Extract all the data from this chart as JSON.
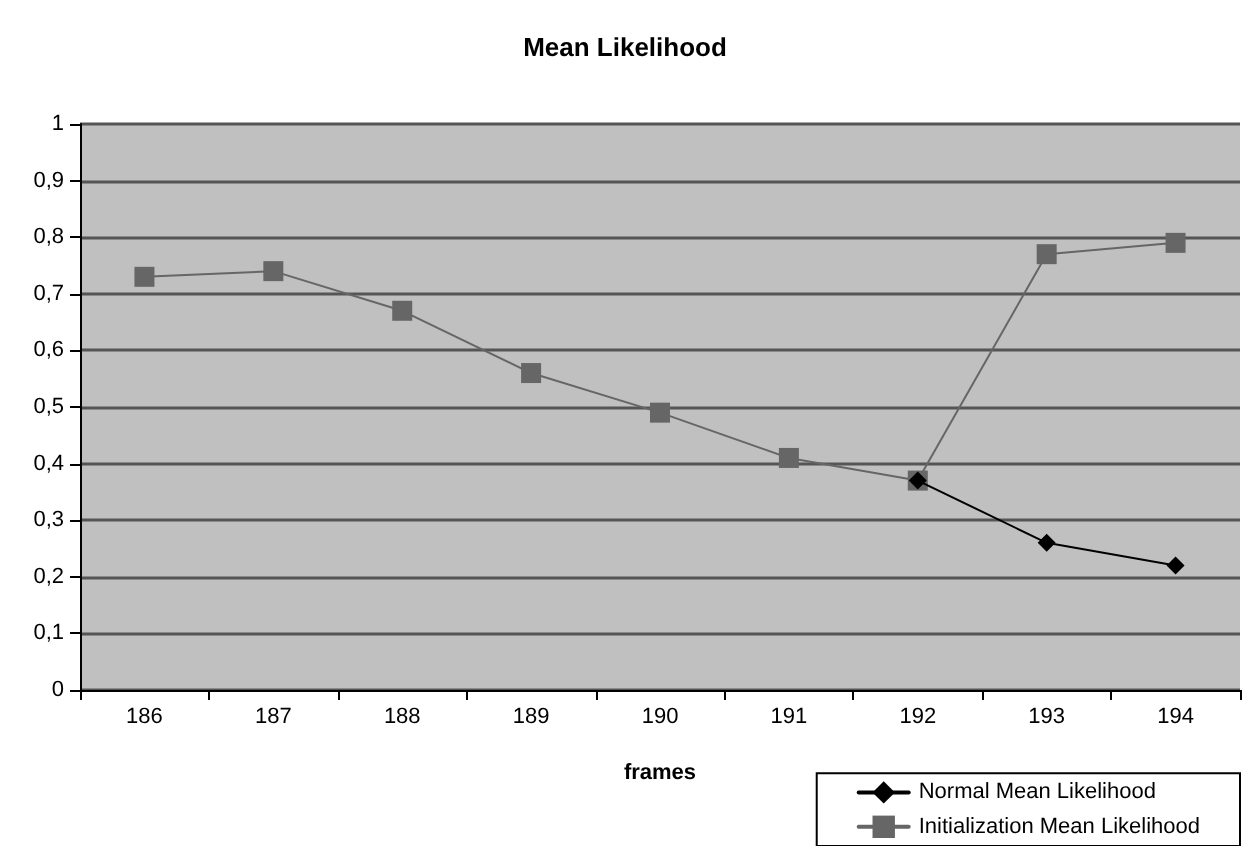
{
  "chart_data": {
    "type": "line",
    "title": "Mean Likelihood",
    "xlabel": "frames",
    "categories": [
      "186",
      "187",
      "188",
      "189",
      "190",
      "191",
      "192",
      "193",
      "194"
    ],
    "series": [
      {
        "name": "Normal Mean Likelihood",
        "color": "#000000",
        "marker": "diamond",
        "values": [
          null,
          null,
          null,
          null,
          null,
          null,
          0.37,
          0.26,
          0.22
        ]
      },
      {
        "name": "Initialization Mean Likelihood",
        "color": "#666666",
        "marker": "square",
        "values": [
          0.73,
          0.74,
          0.67,
          0.56,
          0.49,
          0.41,
          0.37,
          0.77,
          0.79
        ]
      }
    ],
    "ylim": [
      0,
      1
    ],
    "yticks": [
      {
        "value": 0,
        "label": "0"
      },
      {
        "value": 0.1,
        "label": "0,1"
      },
      {
        "value": 0.2,
        "label": "0,2"
      },
      {
        "value": 0.3,
        "label": "0,3"
      },
      {
        "value": 0.4,
        "label": "0,4"
      },
      {
        "value": 0.5,
        "label": "0,5"
      },
      {
        "value": 0.6,
        "label": "0,6"
      },
      {
        "value": 0.7,
        "label": "0,7"
      },
      {
        "value": 0.8,
        "label": "0,8"
      },
      {
        "value": 0.9,
        "label": "0,9"
      },
      {
        "value": 1,
        "label": "1"
      }
    ],
    "grid": "y",
    "legend": "bottom right"
  }
}
